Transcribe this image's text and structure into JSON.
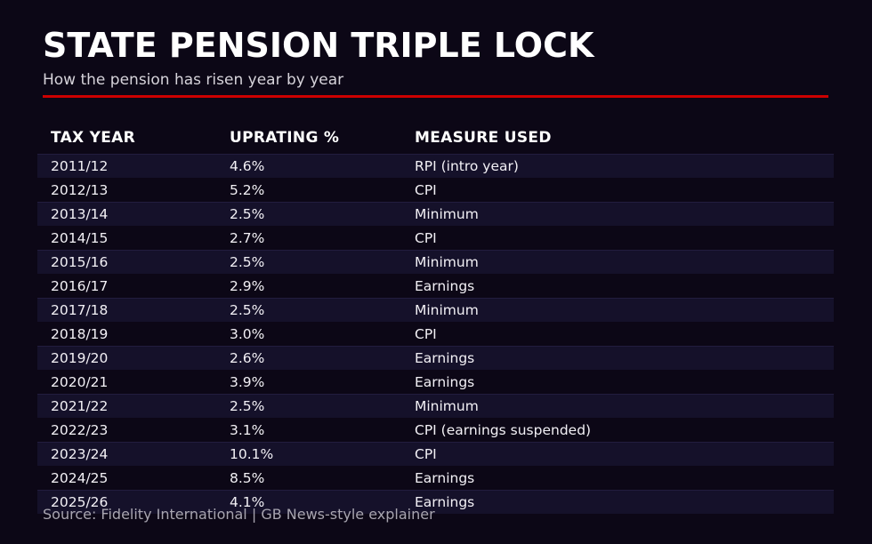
{
  "page": {
    "title": "STATE PENSION TRIPLE LOCK",
    "subtitle": "How the pension has risen year by year",
    "source": "Source: Fidelity International | GB News-style explainer"
  },
  "colors": {
    "background": "#0c0716",
    "row_stripe": "#15112a",
    "accent_red": "#cc0000",
    "title_text": "#ffffff",
    "subtitle_text": "#d6d3da",
    "cell_text": "#f2f0f5",
    "source_text": "#a8a5b0"
  },
  "table": {
    "headers": [
      "TAX YEAR",
      "UPRATING %",
      "MEASURE USED"
    ],
    "rows": [
      {
        "tax_year": "2011/12",
        "uprating": "4.6%",
        "measure": "RPI (intro year)"
      },
      {
        "tax_year": "2012/13",
        "uprating": "5.2%",
        "measure": "CPI"
      },
      {
        "tax_year": "2013/14",
        "uprating": "2.5%",
        "measure": "Minimum"
      },
      {
        "tax_year": "2014/15",
        "uprating": "2.7%",
        "measure": "CPI"
      },
      {
        "tax_year": "2015/16",
        "uprating": "2.5%",
        "measure": "Minimum"
      },
      {
        "tax_year": "2016/17",
        "uprating": "2.9%",
        "measure": "Earnings"
      },
      {
        "tax_year": "2017/18",
        "uprating": "2.5%",
        "measure": "Minimum"
      },
      {
        "tax_year": "2018/19",
        "uprating": "3.0%",
        "measure": "CPI"
      },
      {
        "tax_year": "2019/20",
        "uprating": "2.6%",
        "measure": "Earnings"
      },
      {
        "tax_year": "2020/21",
        "uprating": "3.9%",
        "measure": "Earnings"
      },
      {
        "tax_year": "2021/22",
        "uprating": "2.5%",
        "measure": "Minimum"
      },
      {
        "tax_year": "2022/23",
        "uprating": "3.1%",
        "measure": "CPI (earnings suspended)"
      },
      {
        "tax_year": "2023/24",
        "uprating": "10.1%",
        "measure": "CPI"
      },
      {
        "tax_year": "2024/25",
        "uprating": "8.5%",
        "measure": "Earnings"
      },
      {
        "tax_year": "2025/26",
        "uprating": "4.1%",
        "measure": "Earnings"
      }
    ]
  },
  "chart_data": {
    "type": "table",
    "title": "STATE PENSION TRIPLE LOCK",
    "subtitle": "How the pension has risen year by year",
    "columns": [
      "TAX YEAR",
      "UPRATING %",
      "MEASURE USED"
    ],
    "rows": [
      [
        "2011/12",
        "4.6%",
        "RPI (intro year)"
      ],
      [
        "2012/13",
        "5.2%",
        "CPI"
      ],
      [
        "2013/14",
        "2.5%",
        "Minimum"
      ],
      [
        "2014/15",
        "2.7%",
        "CPI"
      ],
      [
        "2015/16",
        "2.5%",
        "Minimum"
      ],
      [
        "2016/17",
        "2.9%",
        "Earnings"
      ],
      [
        "2017/18",
        "2.5%",
        "Minimum"
      ],
      [
        "2018/19",
        "3.0%",
        "CPI"
      ],
      [
        "2019/20",
        "2.6%",
        "Earnings"
      ],
      [
        "2020/21",
        "3.9%",
        "Earnings"
      ],
      [
        "2021/22",
        "2.5%",
        "Minimum"
      ],
      [
        "2022/23",
        "3.1%",
        "CPI (earnings suspended)"
      ],
      [
        "2023/24",
        "10.1%",
        "CPI"
      ],
      [
        "2024/25",
        "8.5%",
        "Earnings"
      ],
      [
        "2025/26",
        "4.1%",
        "Earnings"
      ]
    ],
    "uprating_values_percent": [
      4.6,
      5.2,
      2.5,
      2.7,
      2.5,
      2.9,
      2.5,
      3.0,
      2.6,
      3.9,
      2.5,
      3.1,
      10.1,
      8.5,
      4.1
    ],
    "source": "Source: Fidelity International | GB News-style explainer",
    "layout_hints": {
      "striped_rows": "odd",
      "grid": false,
      "theme": "dark"
    }
  }
}
